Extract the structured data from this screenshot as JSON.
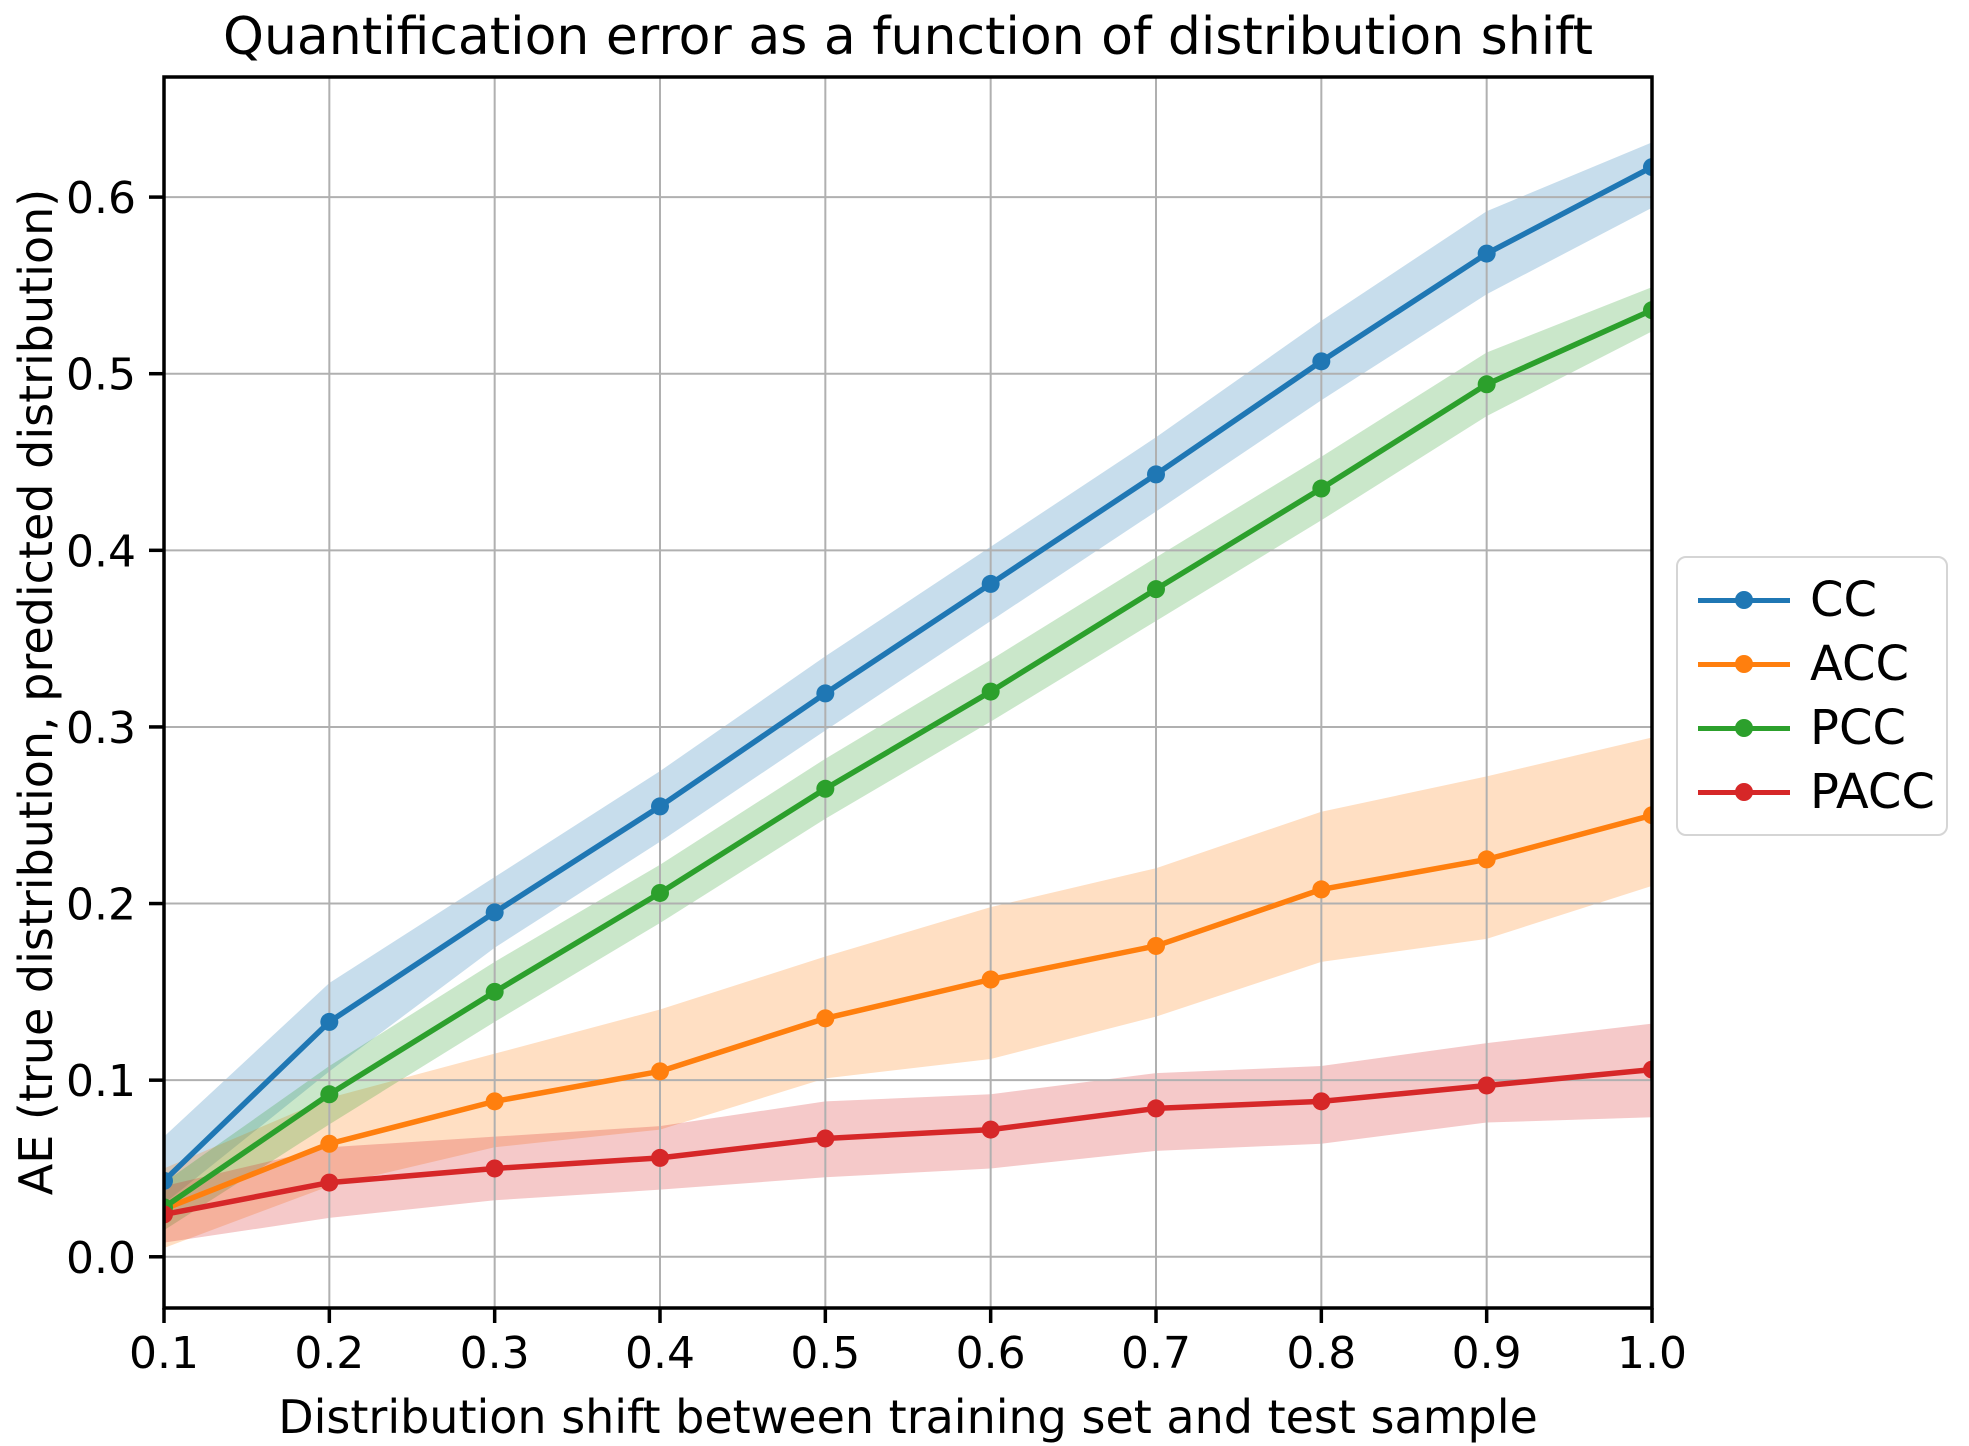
{
  "chart_data": {
    "type": "line",
    "title": "Quantification error as a function of distribution shift",
    "xlabel": "Distribution shift between training set and test sample",
    "ylabel": "AE (true distribution, predicted distribution)",
    "x": [
      0.1,
      0.2,
      0.3,
      0.4,
      0.5,
      0.6,
      0.7,
      0.8,
      0.9,
      1.0
    ],
    "xtick_labels": [
      "0.1",
      "0.2",
      "0.3",
      "0.4",
      "0.5",
      "0.6",
      "0.7",
      "0.8",
      "0.9",
      "1.0"
    ],
    "ytick_labels": [
      "0.0",
      "0.1",
      "0.2",
      "0.3",
      "0.4",
      "0.5",
      "0.6"
    ],
    "xlim": [
      0.1,
      1.0
    ],
    "ylim": [
      -0.029,
      0.668
    ],
    "grid": true,
    "grid_color": "#b0b0b0",
    "band_alpha": 0.25,
    "legend_position": "outside-center-right",
    "series": [
      {
        "name": "CC",
        "color": "#1f77b4",
        "values": [
          0.043,
          0.133,
          0.195,
          0.255,
          0.319,
          0.381,
          0.443,
          0.507,
          0.568,
          0.617
        ],
        "band_lower": [
          0.03,
          0.105,
          0.175,
          0.235,
          0.298,
          0.36,
          0.422,
          0.485,
          0.545,
          0.594
        ],
        "band_upper": [
          0.068,
          0.155,
          0.215,
          0.275,
          0.34,
          0.402,
          0.464,
          0.53,
          0.592,
          0.631
        ]
      },
      {
        "name": "ACC",
        "color": "#ff7f0e",
        "values": [
          0.027,
          0.064,
          0.088,
          0.105,
          0.135,
          0.157,
          0.176,
          0.208,
          0.225,
          0.25
        ],
        "band_lower": [
          0.005,
          0.04,
          0.062,
          0.072,
          0.101,
          0.112,
          0.136,
          0.167,
          0.18,
          0.21
        ],
        "band_upper": [
          0.05,
          0.09,
          0.115,
          0.14,
          0.17,
          0.198,
          0.22,
          0.252,
          0.272,
          0.294
        ]
      },
      {
        "name": "PCC",
        "color": "#2ca02c",
        "values": [
          0.028,
          0.092,
          0.15,
          0.206,
          0.265,
          0.32,
          0.378,
          0.435,
          0.494,
          0.536
        ],
        "band_lower": [
          0.015,
          0.075,
          0.133,
          0.189,
          0.248,
          0.303,
          0.36,
          0.417,
          0.476,
          0.524
        ],
        "band_upper": [
          0.042,
          0.108,
          0.167,
          0.222,
          0.282,
          0.338,
          0.396,
          0.453,
          0.512,
          0.549
        ]
      },
      {
        "name": "PACC",
        "color": "#d62728",
        "values": [
          0.024,
          0.042,
          0.05,
          0.056,
          0.067,
          0.072,
          0.084,
          0.088,
          0.097,
          0.106
        ],
        "band_lower": [
          0.008,
          0.022,
          0.032,
          0.038,
          0.045,
          0.05,
          0.06,
          0.064,
          0.076,
          0.079
        ],
        "band_upper": [
          0.04,
          0.062,
          0.068,
          0.074,
          0.088,
          0.092,
          0.104,
          0.108,
          0.121,
          0.132
        ]
      }
    ]
  }
}
